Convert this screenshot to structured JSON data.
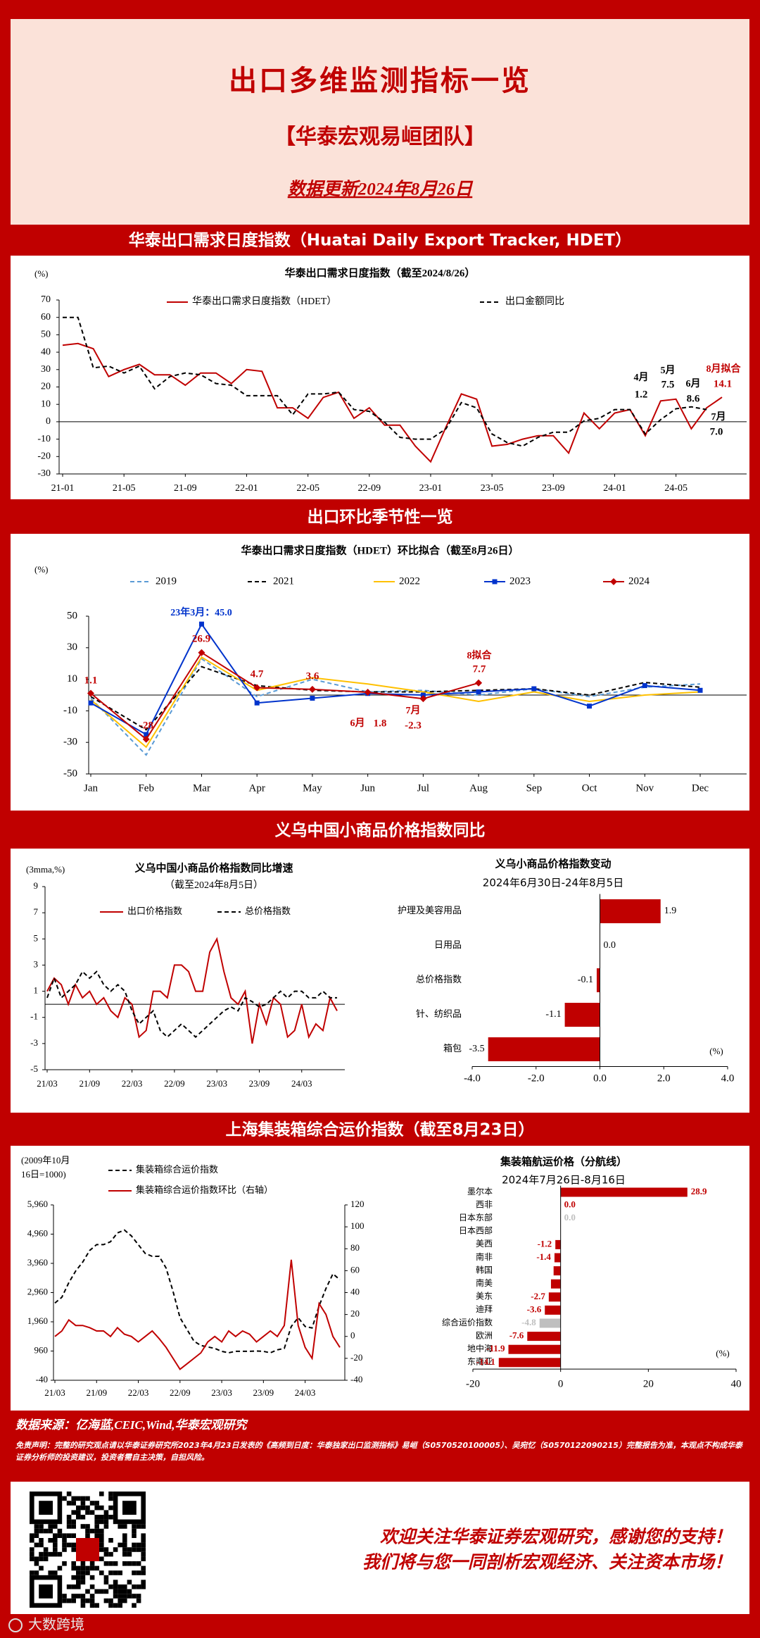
{
  "header": {
    "title": "出口多维监测指标一览",
    "subtitle": "【华泰宏观易峘团队】",
    "date": "数据更新2024年8月26日"
  },
  "sections": [
    "华泰出口需求日度指数（Huatai Daily Export Tracker, HDET）",
    "出口环比季节性一览",
    "义乌中国小商品价格指数同比",
    "上海集装箱综合运价指数（截至8月23日）"
  ],
  "chart_data": [
    {
      "type": "line",
      "title": "华泰出口需求日度指数（截至2024/8/26）",
      "y_label": "(%)",
      "categories": [
        "21-01",
        null,
        null,
        null,
        "21-05",
        null,
        null,
        null,
        "21-09",
        null,
        null,
        null,
        "22-01",
        null,
        null,
        null,
        "22-05",
        null,
        null,
        null,
        "22-09",
        null,
        null,
        null,
        "23-01",
        null,
        null,
        null,
        "23-05",
        null,
        null,
        null,
        "23-09",
        null,
        null,
        null,
        "24-01",
        null,
        null,
        null,
        "24-05",
        null,
        null,
        null
      ],
      "series": [
        {
          "name": "华泰出口需求日度指数（HDET）",
          "color": "#c00000",
          "dash": false,
          "values": [
            44,
            45,
            42,
            26,
            30,
            33,
            27,
            27,
            21,
            28,
            28,
            22,
            30,
            29,
            8,
            8,
            2,
            14,
            17,
            2,
            8,
            -2,
            -2,
            -14,
            -23,
            -3,
            16,
            13,
            -14,
            -13,
            -10,
            -8,
            -8,
            -18,
            5,
            -4,
            5,
            7,
            -8,
            12,
            13,
            -4,
            8,
            14.1
          ]
        },
        {
          "name": "出口金额同比",
          "color": "#000000",
          "dash": true,
          "values": [
            60,
            60,
            31,
            32,
            28,
            32,
            19,
            26,
            28,
            27,
            22,
            21,
            15,
            15,
            15,
            4,
            16,
            16,
            17,
            7,
            6,
            -0.3,
            -9,
            -10,
            -10,
            -4,
            11,
            8,
            -7,
            -12,
            -14,
            -9,
            -6,
            -6,
            0.5,
            2,
            7,
            7,
            -7,
            1.2,
            7.5,
            8.6,
            7.0,
            null
          ],
          "value_labels": [
            null,
            null,
            null,
            null,
            null,
            null,
            null,
            null,
            null,
            null,
            null,
            null,
            null,
            null,
            null,
            null,
            null,
            null,
            null,
            null,
            null,
            null,
            null,
            null,
            null,
            null,
            null,
            null,
            null,
            null,
            null,
            null,
            null,
            null,
            null,
            null,
            null,
            null,
            null,
            "1.2",
            "7.5",
            "8.6",
            "7.0",
            null
          ]
        }
      ],
      "annotations": [
        "4月",
        "5月",
        "6月",
        "7月",
        "8月拟合"
      ],
      "ylim": [
        -30,
        70
      ],
      "yticks": [
        -30,
        -20,
        -10,
        0,
        10,
        20,
        30,
        40,
        50,
        60,
        70
      ]
    },
    {
      "type": "line",
      "title": "华泰出口需求日度指数（HDET）环比拟合（截至8月26日）",
      "y_label": "(%)",
      "categories": [
        "Jan",
        "Feb",
        "Mar",
        "Apr",
        "May",
        "Jun",
        "Jul",
        "Aug",
        "Sep",
        "Oct",
        "Nov",
        "Dec"
      ],
      "series": [
        {
          "name": "2019",
          "color": "#5b9bd5",
          "dash": true,
          "marker": null,
          "values": [
            -2,
            -38,
            23,
            -1,
            10,
            2,
            3,
            0,
            4,
            -1,
            5,
            7
          ]
        },
        {
          "name": "2021",
          "color": "#000000",
          "dash": true,
          "marker": null,
          "values": [
            -1,
            -22,
            18,
            6,
            3,
            2,
            2,
            3,
            4,
            0,
            8,
            5
          ]
        },
        {
          "name": "2022",
          "color": "#ffc000",
          "dash": false,
          "marker": null,
          "values": [
            -3,
            -33,
            24,
            3,
            11,
            7,
            2,
            -4,
            2,
            -4,
            0,
            2
          ]
        },
        {
          "name": "2023",
          "color": "#0033cc",
          "dash": false,
          "marker": "square",
          "values": [
            -5,
            -25,
            45,
            -5,
            -2,
            1,
            0,
            2,
            4,
            -7,
            6,
            3
          ]
        },
        {
          "name": "2024",
          "color": "#c00000",
          "dash": false,
          "marker": "diamond",
          "values": [
            1.1,
            -28,
            26.9,
            4.7,
            3.6,
            1.8,
            -2.3,
            7.7,
            null,
            null,
            null,
            null
          ]
        }
      ],
      "annotations": [
        "23年3月：45.0",
        "6月",
        "7月",
        "8拟合"
      ],
      "ylim": [
        -50,
        50
      ],
      "yticks": [
        -50,
        -30,
        -10,
        10,
        30,
        50
      ]
    },
    {
      "type": "line",
      "title": "义乌中国小商品价格指数同比增速",
      "subtitle": "（截至2024年8月5日）",
      "y_label": "(3mma,%)",
      "categories": [
        "21/03",
        null,
        null,
        null,
        null,
        null,
        "21/09",
        null,
        null,
        null,
        null,
        null,
        "22/03",
        null,
        null,
        null,
        null,
        null,
        "22/09",
        null,
        null,
        null,
        null,
        null,
        "23/03",
        null,
        null,
        null,
        null,
        null,
        "23/09",
        null,
        null,
        null,
        null,
        null,
        "24/03",
        null,
        null,
        null,
        null,
        null
      ],
      "series": [
        {
          "name": "出口价格指数",
          "color": "#c00000",
          "dash": false,
          "values": [
            1,
            2,
            1.5,
            0,
            1.5,
            0.5,
            1,
            0,
            0.5,
            -0.5,
            -1,
            0.5,
            0,
            -2.5,
            -2,
            1,
            1,
            0.5,
            3,
            3,
            2.5,
            1,
            1,
            4,
            5,
            2.5,
            0.5,
            0,
            1,
            -3,
            0,
            -1.5,
            0.5,
            0,
            -2.5,
            -2,
            0,
            -2.5,
            -1.5,
            -2,
            0.5,
            -0.5
          ]
        },
        {
          "name": "总价格指数",
          "color": "#000000",
          "dash": true,
          "values": [
            0.5,
            2,
            0.5,
            1,
            1.5,
            2.5,
            2,
            2.5,
            1.5,
            1,
            1.5,
            1,
            -0.5,
            -1.5,
            -1,
            -0.5,
            -2,
            -2.5,
            -2,
            -1.5,
            -2,
            -2.5,
            -2,
            -1.5,
            -1,
            -0.5,
            -0.2,
            -0.5,
            0.5,
            0.2,
            -0.2,
            0,
            0.5,
            1,
            0.5,
            1,
            1,
            0.5,
            0.5,
            1,
            0.5,
            0.5
          ]
        }
      ],
      "ylim": [
        -5,
        9
      ],
      "yticks": [
        -5,
        -3,
        -1,
        1,
        3,
        5,
        7,
        9
      ]
    },
    {
      "type": "hbar",
      "title": "义乌小商品价格指数变动",
      "subtitle": "2024年6月30日-24年8月5日",
      "x_label": "(%)",
      "categories": [
        "护理及美容用品",
        "日用品",
        "总价格指数",
        "针、纺织品",
        "箱包"
      ],
      "values": [
        1.9,
        0.0,
        -0.1,
        -1.1,
        -3.5
      ],
      "value_labels": [
        "1.9",
        "0.0",
        "-0.1",
        "-1.1",
        "-3.5"
      ],
      "color": "#c00000",
      "xlim": [
        -4,
        4
      ],
      "xticks": [
        {
          "value": -4,
          "label": "-4.0"
        },
        {
          "value": -2,
          "label": "-2.0"
        },
        {
          "value": 0,
          "label": "0.0"
        },
        {
          "value": 2,
          "label": "2.0"
        },
        {
          "value": 4,
          "label": "4.0"
        }
      ]
    },
    {
      "type": "line",
      "y_label": "(2009年10月16日=1000)",
      "categories": [
        "21/03",
        null,
        null,
        null,
        null,
        null,
        "21/09",
        null,
        null,
        null,
        null,
        null,
        "22/03",
        null,
        null,
        null,
        null,
        null,
        "22/09",
        null,
        null,
        null,
        null,
        null,
        "23/03",
        null,
        null,
        null,
        null,
        null,
        "23/09",
        null,
        null,
        null,
        null,
        null,
        "24/03",
        null,
        null,
        null,
        null,
        null
      ],
      "series": [
        {
          "name": "集装箱综合运价指数",
          "color": "#000000",
          "dash": true,
          "values": [
            2600,
            2800,
            3300,
            3700,
            4000,
            4400,
            4600,
            4600,
            4700,
            5000,
            5100,
            4900,
            4600,
            4300,
            4200,
            4200,
            3800,
            3000,
            2100,
            1700,
            1300,
            1150,
            1100,
            1050,
            950,
            900,
            950,
            950,
            950,
            960,
            950,
            900,
            1000,
            1050,
            1800,
            2100,
            1800,
            1750,
            2500,
            3100,
            3600,
            3400
          ]
        },
        {
          "name": "集装箱综合运价指数环比（右轴）",
          "color": "#c00000",
          "dash": false,
          "axis": "y2",
          "values": [
            0,
            5,
            15,
            10,
            10,
            8,
            5,
            5,
            0,
            8,
            2,
            0,
            -5,
            0,
            5,
            -2,
            -10,
            -20,
            -30,
            -25,
            -20,
            -15,
            -5,
            0,
            -5,
            5,
            0,
            5,
            2,
            -5,
            0,
            5,
            0,
            10,
            70,
            10,
            -10,
            -20,
            30,
            20,
            0,
            -10
          ]
        }
      ],
      "ylim": [
        -40,
        5960
      ],
      "yticks": [
        -40,
        960,
        {
          "value": 1960,
          "label": "1,960"
        },
        {
          "value": 2960,
          "label": "2,960"
        },
        {
          "value": 3960,
          "label": "3,960"
        },
        {
          "value": 4960,
          "label": "4,960"
        },
        {
          "value": 5960,
          "label": "5,960"
        }
      ],
      "y2lim": [
        -40,
        120
      ],
      "y2ticks": [
        -40,
        -20,
        0,
        20,
        40,
        60,
        80,
        100,
        120
      ]
    },
    {
      "type": "hbar",
      "title": "集装箱航运价格（分航线）",
      "subtitle": "2024年7月26日-8月16日",
      "x_label": "(%)",
      "categories": [
        "墨尔本",
        "西非",
        "日本东部",
        "日本西部",
        "美西",
        "南非",
        "韩国",
        "南美",
        "美东",
        "迪拜",
        "综合运价指数",
        "欧洲",
        "地中海",
        "东南亚"
      ],
      "values": [
        28.9,
        0.0,
        0.0,
        0,
        -1.2,
        -1.4,
        -1.6,
        -2.2,
        -2.7,
        -3.6,
        -4.8,
        -7.6,
        -11.9,
        -14.1
      ],
      "value_labels": [
        "28.9",
        "0.0",
        "0.0",
        null,
        "-1.2",
        "-1.4",
        null,
        null,
        "-2.7",
        "-3.6",
        "-4.8",
        "-7.6",
        "-11.9",
        "-14.1"
      ],
      "colors": [
        "#c00000",
        "#c00000",
        "#bfbfbf",
        "#c00000",
        "#c00000",
        "#c00000",
        "#c00000",
        "#c00000",
        "#c00000",
        "#c00000",
        "#bfbfbf",
        "#c00000",
        "#c00000",
        "#c00000"
      ],
      "xlim": [
        -20,
        40
      ],
      "xticks": [
        -20,
        0,
        20,
        40
      ]
    }
  ],
  "footer": {
    "source": "数据来源：亿海蓝,CEIC,Wind,华泰宏观研究",
    "disclaimer": "免责声明：完整的研究观点请以华泰证券研究所2023年4月23日发表的《高频到日度：华泰独家出口监测指标》易峘（S0570520100005）、吴宛忆（S0570122090215）完整报告为准，本观点不构成华泰证券分析师的投资建议，投资者需自主决策，自担风险。",
    "slogan": [
      "欢迎关注华泰证券宏观研究，感谢您的支持！",
      "我们将与您一同剖析宏观经济、关注资本市场！"
    ],
    "watermark": "大数跨境"
  }
}
